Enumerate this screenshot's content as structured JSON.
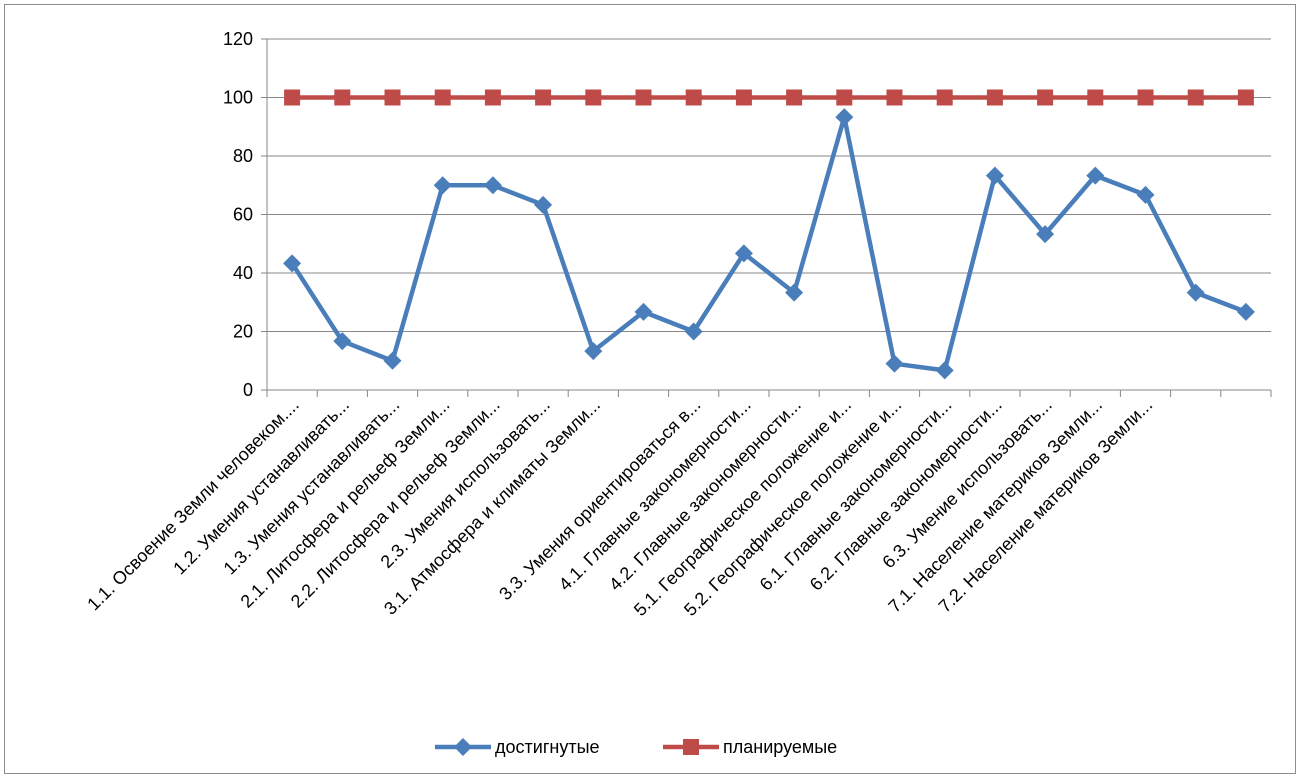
{
  "chart_data": {
    "type": "line",
    "title": "",
    "xlabel": "",
    "ylabel": "",
    "ylim": [
      0,
      120
    ],
    "yticks": [
      0,
      20,
      40,
      60,
      80,
      100,
      120
    ],
    "grid": true,
    "legend_position": "bottom",
    "categories": [
      "1.1. Освоение Земли человеком....",
      "1.2. Умения устанавливать...",
      "1.3. Умения устанавливать...",
      "2.1. Литосфера и рельеф Земли...",
      "2.2. Литосфера и рельеф Земли...",
      "2.3. Умения использовать...",
      "3.1. Атмосфера и климаты Земли...",
      "",
      "3.3. Умения ориентироваться в...",
      "4.1. Главные закономерности...",
      "4.2. Главные закономерности...",
      "5.1. Географическое положение и...",
      "5.2. Географическое положение и...",
      "6.1. Главные закономерности...",
      "6.2. Главные закономерности...",
      "6.3. Умение использовать...",
      "7.1. Население материков Земли...",
      "7.2. Население материков Земли...",
      "",
      ""
    ],
    "series": [
      {
        "name": "достигнутые",
        "color": "#4a7ebb",
        "marker": "diamond",
        "values": [
          43.3,
          16.7,
          10,
          70,
          70,
          63.3,
          13.3,
          26.7,
          20,
          46.7,
          33.3,
          93.3,
          9,
          6.7,
          73.3,
          53.3,
          73.3,
          66.7,
          33.3,
          26.7
        ]
      },
      {
        "name": "планируемые",
        "color": "#be4b48",
        "marker": "square",
        "values": [
          100,
          100,
          100,
          100,
          100,
          100,
          100,
          100,
          100,
          100,
          100,
          100,
          100,
          100,
          100,
          100,
          100,
          100,
          100,
          100
        ]
      }
    ]
  }
}
